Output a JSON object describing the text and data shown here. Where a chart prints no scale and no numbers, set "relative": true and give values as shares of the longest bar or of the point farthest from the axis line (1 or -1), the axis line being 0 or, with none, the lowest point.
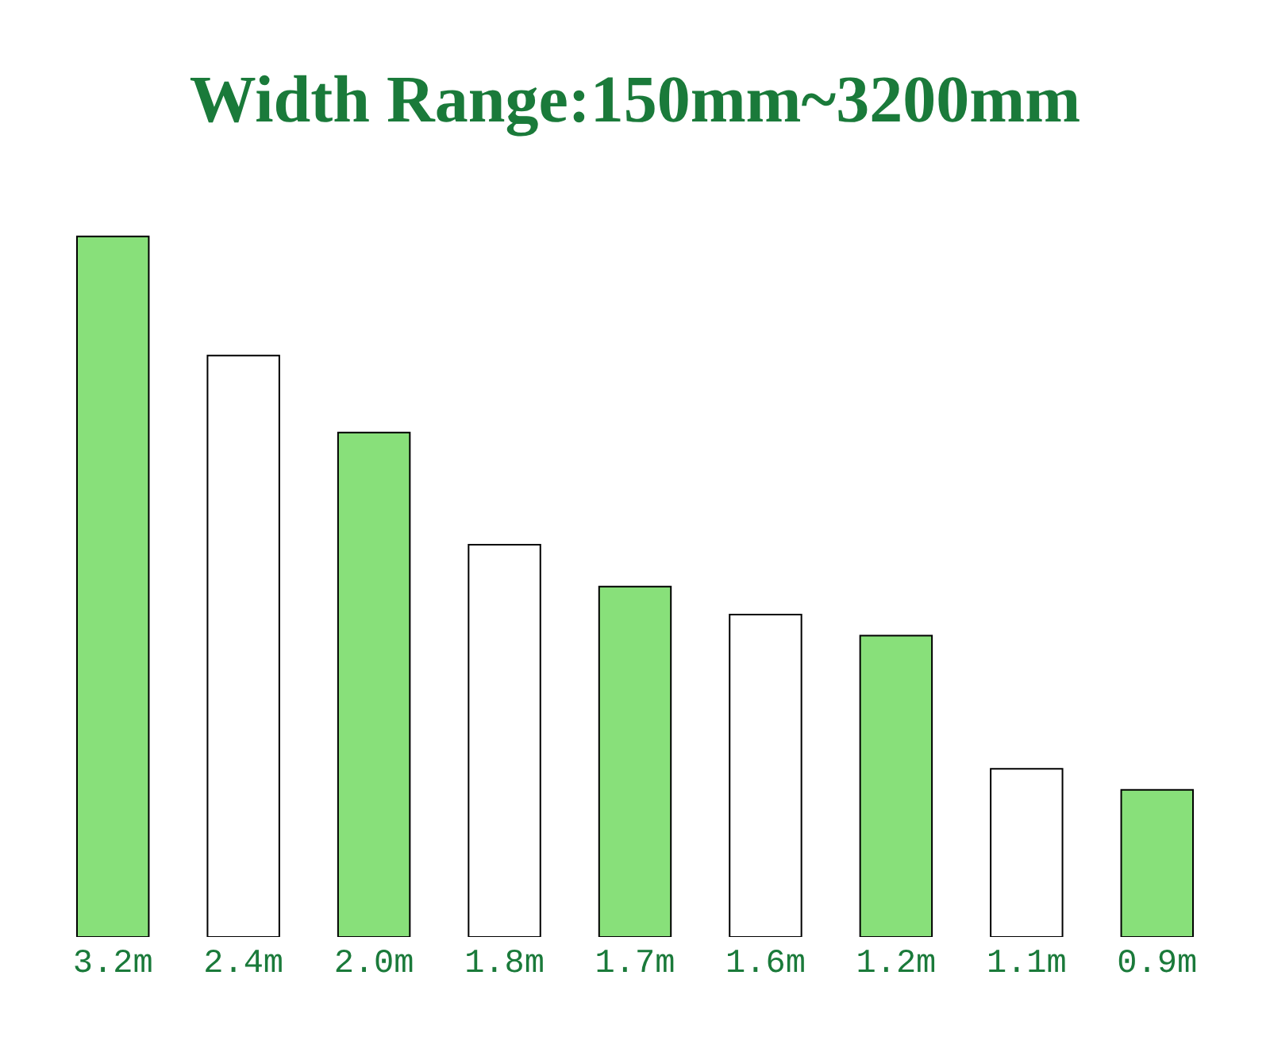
{
  "chart_data": {
    "type": "bar",
    "title": "Width Range:150mm~3200mm",
    "categories": [
      "3.2m",
      "2.4m",
      "2.0m",
      "1.8m",
      "1.7m",
      "1.6m",
      "1.2m",
      "1.1m",
      "0.9m"
    ],
    "values": [
      1,
      0.83,
      0.72,
      0.56,
      0.5,
      0.46,
      0.43,
      0.24,
      0.21
    ],
    "colors": [
      "#88e07a",
      "#ffffff",
      "#88e07a",
      "#ffffff",
      "#88e07a",
      "#ffffff",
      "#88e07a",
      "#ffffff",
      "#88e07a"
    ],
    "relative": true
  }
}
